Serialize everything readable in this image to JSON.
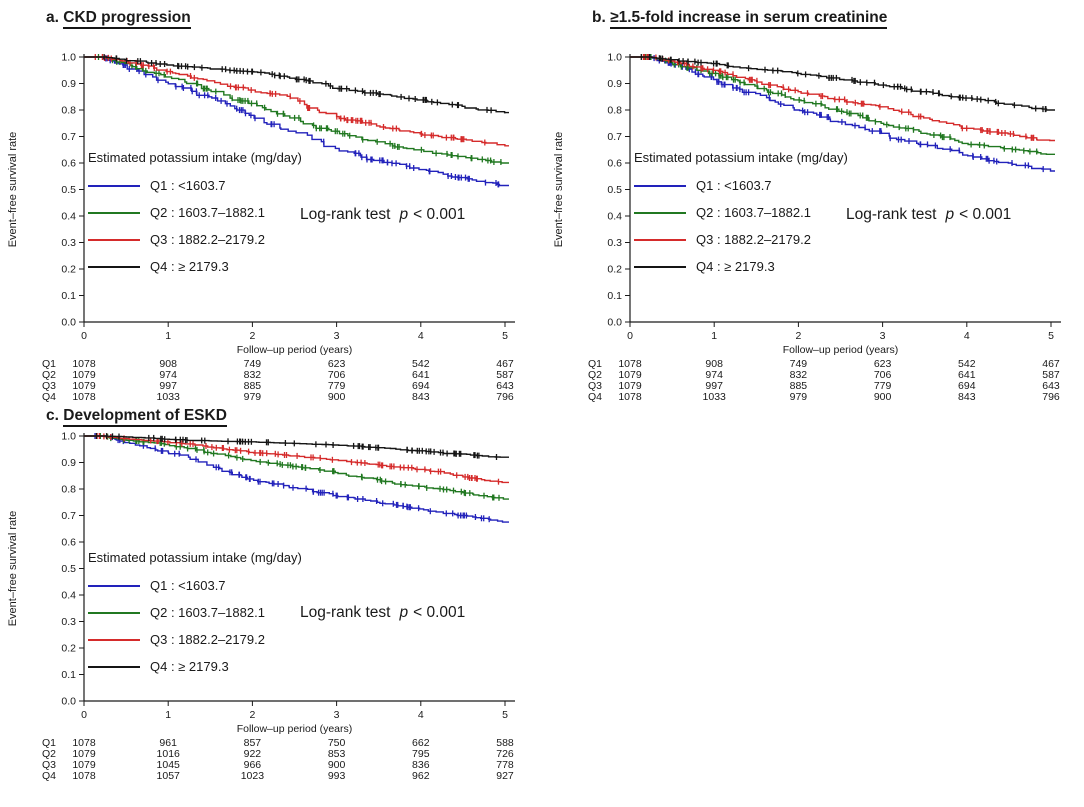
{
  "figure": {
    "background": "#ffffff",
    "colors": {
      "q1_blue": "#2222bb",
      "q2_green": "#217821",
      "q3_red": "#d52b2b",
      "q4_black": "#151515",
      "axis": "#1a1a1a",
      "text": "#1a1a1a"
    }
  },
  "shared": {
    "xlabel": "Follow–up period (years)",
    "ylabel": "Event–free survival rate",
    "legend_title": "Estimated potassium intake (mg/day)",
    "logrank": {
      "before": "Log-rank test",
      "p": "p",
      "after": "< 0.001"
    },
    "xticks": [
      "0",
      "1",
      "2",
      "3",
      "4",
      "5"
    ],
    "yticks": [
      "1.0",
      "0.9",
      "0.8",
      "0.7",
      "0.6",
      "0.5",
      "0.4",
      "0.3",
      "0.2",
      "0.1",
      "0.0"
    ]
  },
  "chart_data": [
    {
      "type": "line",
      "panel_prefix": "a.",
      "title": "CKD progression",
      "xlabel": "Follow–up period (years)",
      "ylabel": "Event–free survival rate",
      "legend_title": "Estimated potassium intake (mg/day)",
      "annotation": "Log-rank test p < 0.001",
      "legend_position": "inside-lower-left",
      "grid": false,
      "xlim": [
        0,
        5
      ],
      "ylim": [
        0.0,
        1.0
      ],
      "x_knots": [
        0,
        0.5,
        1,
        1.5,
        2,
        2.5,
        3,
        3.5,
        4,
        4.5,
        5
      ],
      "series": [
        {
          "name": "Q1",
          "label": "Q1 : <1603.7",
          "color": "#2222bb",
          "values": [
            1.0,
            0.97,
            0.905,
            0.85,
            0.78,
            0.72,
            0.655,
            0.61,
            0.575,
            0.545,
            0.515
          ]
        },
        {
          "name": "Q2",
          "label": "Q2 : 1603.7–1882.1",
          "color": "#217821",
          "values": [
            1.0,
            0.975,
            0.925,
            0.875,
            0.825,
            0.77,
            0.72,
            0.68,
            0.65,
            0.625,
            0.6
          ]
        },
        {
          "name": "Q3",
          "label": "Q3 : 1882.2–2179.2",
          "color": "#d52b2b",
          "values": [
            1.0,
            0.985,
            0.945,
            0.91,
            0.875,
            0.845,
            0.775,
            0.74,
            0.71,
            0.69,
            0.665
          ]
        },
        {
          "name": "Q4",
          "label": "Q4 : ≥ 2179.3",
          "color": "#151515",
          "values": [
            1.0,
            0.99,
            0.97,
            0.958,
            0.945,
            0.92,
            0.882,
            0.86,
            0.838,
            0.814,
            0.79
          ]
        }
      ],
      "risk_table": {
        "label_col": [
          "Q1",
          "Q2",
          "Q3",
          "Q4"
        ],
        "years": [
          0,
          1,
          2,
          3,
          4,
          5
        ],
        "counts": [
          [
            1078,
            908,
            749,
            623,
            542,
            467
          ],
          [
            1079,
            974,
            832,
            706,
            641,
            587
          ],
          [
            1079,
            997,
            885,
            779,
            694,
            643
          ],
          [
            1078,
            1033,
            979,
            900,
            843,
            796
          ]
        ]
      }
    },
    {
      "type": "line",
      "panel_prefix": "b.",
      "title": "≥1.5-fold increase in serum creatinine",
      "xlabel": "Follow–up period (years)",
      "ylabel": "Event–free survival rate",
      "legend_title": "Estimated potassium intake (mg/day)",
      "annotation": "Log-rank test p < 0.001",
      "legend_position": "inside-lower-left",
      "grid": false,
      "xlim": [
        0,
        5
      ],
      "ylim": [
        0.0,
        1.0
      ],
      "x_knots": [
        0,
        0.5,
        1,
        1.5,
        2,
        2.5,
        3,
        3.5,
        4,
        4.5,
        5
      ],
      "series": [
        {
          "name": "Q1",
          "label": "Q1 : <1603.7",
          "color": "#2222bb",
          "values": [
            1.0,
            0.975,
            0.915,
            0.862,
            0.8,
            0.755,
            0.712,
            0.67,
            0.63,
            0.6,
            0.57
          ]
        },
        {
          "name": "Q2",
          "label": "Q2 : 1603.7–1882.1",
          "color": "#217821",
          "values": [
            1.0,
            0.98,
            0.938,
            0.89,
            0.838,
            0.795,
            0.75,
            0.712,
            0.674,
            0.654,
            0.633
          ]
        },
        {
          "name": "Q3",
          "label": "Q3 : 1882.2–2179.2",
          "color": "#d52b2b",
          "values": [
            1.0,
            0.985,
            0.95,
            0.91,
            0.869,
            0.84,
            0.812,
            0.77,
            0.731,
            0.71,
            0.685
          ]
        },
        {
          "name": "Q4",
          "label": "Q4 : ≥ 2179.3",
          "color": "#151515",
          "values": [
            1.0,
            0.99,
            0.975,
            0.956,
            0.938,
            0.915,
            0.894,
            0.869,
            0.845,
            0.822,
            0.8
          ]
        }
      ],
      "risk_table": {
        "label_col": [
          "Q1",
          "Q2",
          "Q3",
          "Q4"
        ],
        "years": [
          0,
          1,
          2,
          3,
          4,
          5
        ],
        "counts": [
          [
            1078,
            908,
            749,
            623,
            542,
            467
          ],
          [
            1079,
            974,
            832,
            706,
            641,
            587
          ],
          [
            1079,
            997,
            885,
            779,
            694,
            643
          ],
          [
            1078,
            1033,
            979,
            900,
            843,
            796
          ]
        ]
      }
    },
    {
      "type": "line",
      "panel_prefix": "c.",
      "title": "Development of ESKD",
      "xlabel": "Follow–up period (years)",
      "ylabel": "Event–free survival rate",
      "legend_title": "Estimated potassium intake (mg/day)",
      "annotation": "Log-rank test p < 0.001",
      "legend_position": "inside-lower-left",
      "grid": false,
      "xlim": [
        0,
        5
      ],
      "ylim": [
        0.0,
        1.0
      ],
      "x_knots": [
        0,
        0.5,
        1,
        1.5,
        2,
        2.5,
        3,
        3.5,
        4,
        4.5,
        5
      ],
      "series": [
        {
          "name": "Q1",
          "label": "Q1 : <1603.7",
          "color": "#2222bb",
          "values": [
            1.0,
            0.975,
            0.938,
            0.89,
            0.838,
            0.805,
            0.775,
            0.75,
            0.725,
            0.7,
            0.675
          ]
        },
        {
          "name": "Q2",
          "label": "Q2 : 1603.7–1882.1",
          "color": "#217821",
          "values": [
            1.0,
            0.985,
            0.968,
            0.938,
            0.907,
            0.885,
            0.862,
            0.835,
            0.81,
            0.786,
            0.762
          ]
        },
        {
          "name": "Q3",
          "label": "Q3 : 1882.2–2179.2",
          "color": "#d52b2b",
          "values": [
            1.0,
            0.99,
            0.978,
            0.958,
            0.938,
            0.925,
            0.91,
            0.892,
            0.874,
            0.85,
            0.825
          ]
        },
        {
          "name": "Q4",
          "label": "Q4 : ≥ 2179.3",
          "color": "#151515",
          "values": [
            1.0,
            0.997,
            0.988,
            0.982,
            0.978,
            0.972,
            0.966,
            0.956,
            0.944,
            0.932,
            0.92
          ]
        }
      ],
      "risk_table": {
        "label_col": [
          "Q1",
          "Q2",
          "Q3",
          "Q4"
        ],
        "years": [
          0,
          1,
          2,
          3,
          4,
          5
        ],
        "counts": [
          [
            1078,
            961,
            857,
            750,
            662,
            588
          ],
          [
            1079,
            1016,
            922,
            853,
            795,
            726
          ],
          [
            1079,
            1045,
            966,
            900,
            836,
            778
          ],
          [
            1078,
            1057,
            1023,
            993,
            962,
            927
          ]
        ]
      }
    }
  ]
}
